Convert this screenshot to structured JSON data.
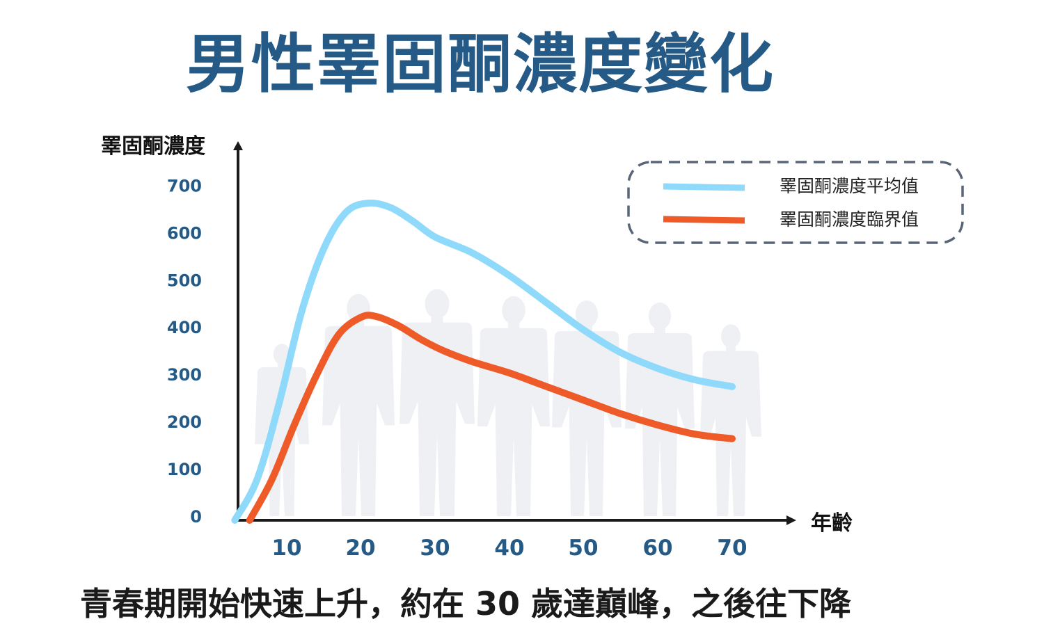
{
  "title": "男性睪固酮濃度變化",
  "caption": "青春期開始快速上升，約在 30 歲達巔峰，之後往下降",
  "colors": {
    "title": "#245a85",
    "axis": "#1a1a1a",
    "tick": "#245a85",
    "average": "#8fd9fb",
    "threshold": "#ee5a28",
    "legend_border": "#5a6478",
    "silhouette": "#eef0f4"
  },
  "chart_data": {
    "type": "line",
    "ylabel": "睪固酮濃度",
    "xlabel": "年齡",
    "xticks": [
      10,
      20,
      30,
      40,
      50,
      60,
      70
    ],
    "yticks": [
      0,
      100,
      200,
      300,
      400,
      500,
      600,
      700
    ],
    "xlim": [
      1,
      80
    ],
    "ylim": [
      0,
      780
    ],
    "legend_position": "top-right",
    "series": [
      {
        "name": "睪固酮濃度平均值",
        "color": "#8fd9fb",
        "x": [
          3,
          6,
          9,
          12,
          15,
          18,
          21,
          24,
          27,
          30,
          35,
          40,
          45,
          50,
          55,
          60,
          65,
          70
        ],
        "y": [
          0,
          90,
          260,
          460,
          600,
          680,
          700,
          690,
          660,
          625,
          590,
          540,
          480,
          420,
          370,
          335,
          310,
          295
        ]
      },
      {
        "name": "睪固酮濃度臨界值",
        "color": "#ee5a28",
        "x": [
          5,
          8,
          11,
          14,
          17,
          20,
          22,
          25,
          28,
          31,
          35,
          40,
          45,
          50,
          55,
          60,
          65,
          70
        ],
        "y": [
          0,
          90,
          210,
          320,
          410,
          448,
          450,
          430,
          400,
          375,
          350,
          325,
          295,
          265,
          235,
          210,
          190,
          180
        ]
      }
    ]
  }
}
